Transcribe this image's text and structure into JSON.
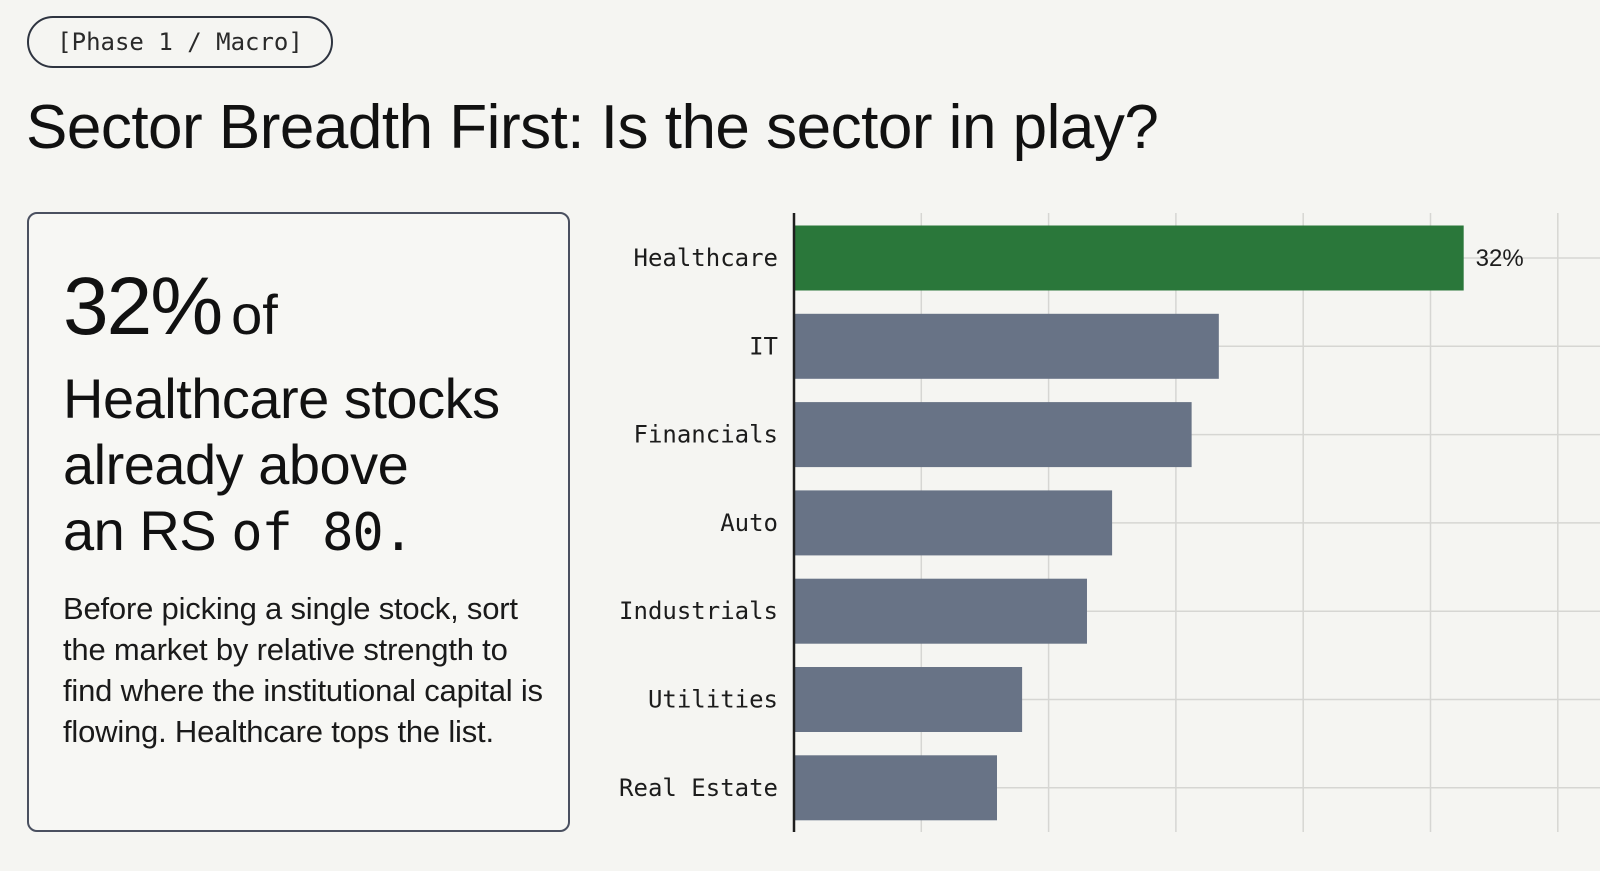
{
  "header": {
    "phase_label": "[Phase 1 / Macro]",
    "title": "Sector Breadth First: Is the sector in play?"
  },
  "callout": {
    "stat_number": "32%",
    "stat_of": "of",
    "stat_line2": "Healthcare stocks",
    "stat_line3": "already above",
    "stat_line4_prefix": "an RS ",
    "stat_line4_mono": "of 80.",
    "body": "Before picking a single stock, sort the market by relative strength to find where the institutional capital is flowing. Healthcare tops the list."
  },
  "chart_data": {
    "type": "bar",
    "orientation": "horizontal",
    "categories": [
      "Healthcare",
      "IT",
      "Financials",
      "Auto",
      "Industrials",
      "Utilities",
      "Real Estate"
    ],
    "values": [
      32,
      20.3,
      19,
      15.2,
      14,
      10.9,
      9.7
    ],
    "data_labels": [
      "32%",
      "",
      "",
      "",
      "",
      "",
      ""
    ],
    "xlim": [
      0,
      36
    ],
    "grid": true,
    "highlight_index": 0,
    "colors": {
      "highlight": "#2a773a",
      "default": "#687386",
      "grid": "#d6d6d3",
      "axis": "#1e1e1e"
    }
  }
}
